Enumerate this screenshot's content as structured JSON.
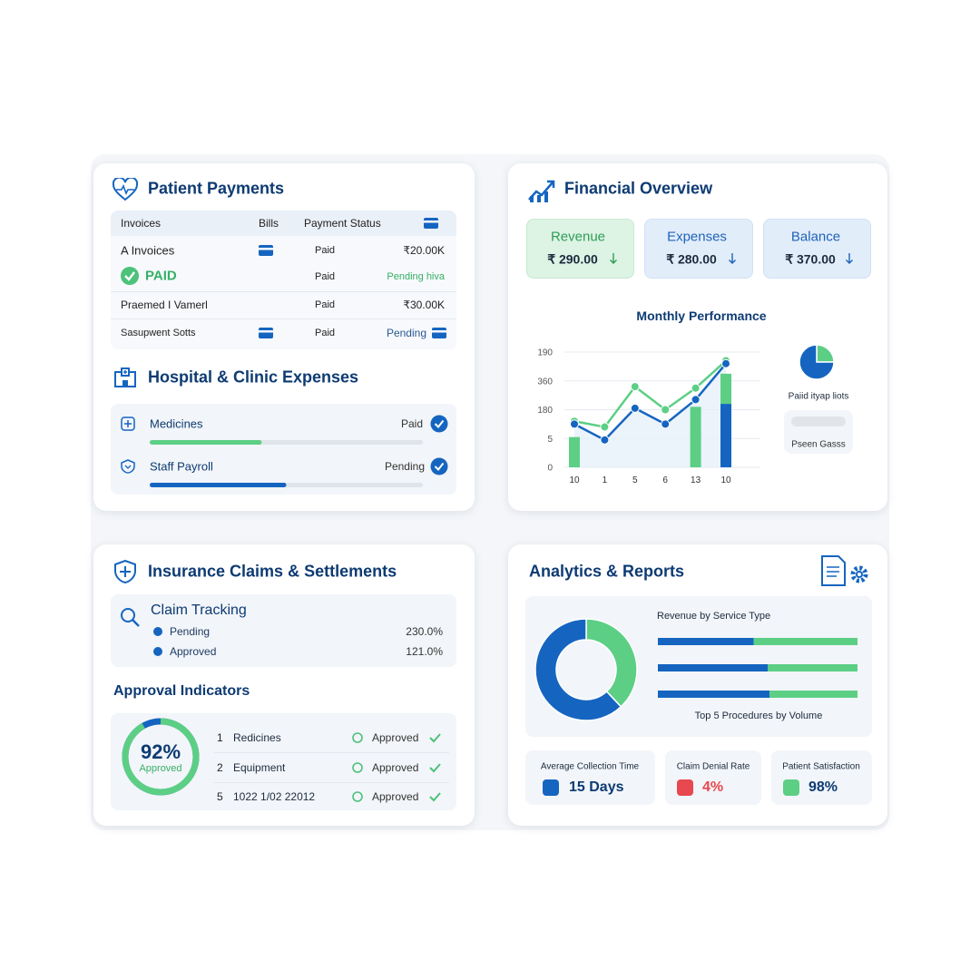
{
  "patient_payments": {
    "title": "Patient Payments",
    "columns": [
      "Invoices",
      "Bills",
      "Payment Status"
    ],
    "rows": [
      {
        "invoice": "A Invoices",
        "status": "Paid",
        "amount": "₹20.00K"
      },
      {
        "invoice": "PAID",
        "status": "Paid",
        "amount": "Pending hiva"
      },
      {
        "invoice": "Praemed I Vamerl",
        "status": "Paid",
        "amount": "₹30.00K"
      },
      {
        "invoice": "Sasupwent Sotts",
        "status": "Paid",
        "amount": "Pending"
      }
    ]
  },
  "hospital_expenses": {
    "title": "Hospital & Clinic Expenses",
    "items": [
      {
        "label": "Medicines",
        "status": "Paid",
        "progress": 41,
        "color": "#5ccf85"
      },
      {
        "label": "Staff Payroll",
        "status": "Pending",
        "progress": 50,
        "color": "#1565c0"
      }
    ]
  },
  "financial_overview": {
    "title": "Financial Overview",
    "cards": [
      {
        "label": "Revenue",
        "value": "₹ 290.00"
      },
      {
        "label": "Expenses",
        "value": "₹ 280.00"
      },
      {
        "label": "Balance",
        "value": "₹ 370.00"
      }
    ],
    "chart": {
      "type": "line",
      "title": "Monthly Performance",
      "categories": [
        "10",
        "1",
        "5",
        "6",
        "13",
        "10"
      ],
      "ylim": [
        0,
        4
      ],
      "yticks": [
        0,
        {
          "value": 1,
          "label": "5"
        },
        {
          "value": 2,
          "label": "180"
        },
        {
          "value": 3,
          "label": "360"
        },
        {
          "value": 4,
          "label": "190"
        }
      ],
      "grid": true,
      "bar_series": [
        {
          "color": "#5ccf85",
          "values": [
            1.05,
            null,
            null,
            null,
            2.1,
            3.25
          ]
        },
        {
          "color": "#1565c0",
          "values": [
            null,
            null,
            null,
            null,
            null,
            2.2
          ]
        }
      ],
      "line_series": [
        {
          "color": "#5ccf85",
          "values": [
            1.6,
            1.4,
            2.8,
            2.0,
            2.75,
            3.7
          ]
        },
        {
          "color": "#1565c0",
          "values": [
            1.5,
            0.95,
            2.05,
            1.5,
            2.35,
            3.6
          ],
          "area_color": "#e6f0fa"
        }
      ]
    },
    "pie": {
      "type": "pie",
      "values": [
        25,
        75
      ],
      "colors": [
        "#5ccf85",
        "#1565c0"
      ],
      "label": "Paiid ityap liots",
      "legend": "Pseen Gasss"
    }
  },
  "insurance": {
    "title": "Insurance Claims & Settlements",
    "claim_tracking": {
      "title": "Claim Tracking",
      "items": [
        {
          "label": "Pending",
          "value": "230.0%"
        },
        {
          "label": "Approved",
          "value": "121.0%"
        }
      ]
    },
    "approval": {
      "title": "Approval Indicators",
      "gauge": {
        "value": 92,
        "value_label": "92%",
        "label": "Approved"
      },
      "rows": [
        {
          "number": "1",
          "label": "Redicines",
          "status": "Approved"
        },
        {
          "number": "2",
          "label": "Equipment",
          "status": "Approved"
        },
        {
          "number": "5",
          "label": "1022 1/02 22012",
          "status": "Approved"
        }
      ]
    }
  },
  "analytics": {
    "title": "Analytics & Reports",
    "donut": {
      "type": "pie",
      "values": [
        38,
        62
      ],
      "colors": [
        "#5ccf85",
        "#1565c0"
      ]
    },
    "service_bars": {
      "type": "bar",
      "title": "Revenue by Service Type",
      "xlim": [
        0,
        100
      ],
      "series": [
        {
          "color": "#1565c0",
          "values": [
            48,
            55,
            56
          ]
        },
        {
          "color": "#5ccf85",
          "values": [
            52,
            45,
            44
          ]
        }
      ],
      "caption": "Top 5 Procedures by Volume"
    },
    "kpis": [
      {
        "label": "Average Collection Time",
        "value": "15 Days"
      },
      {
        "label": "Claim Denial Rate",
        "value": "4%"
      },
      {
        "label": "Patient Satisfaction",
        "value": "98%"
      }
    ]
  }
}
